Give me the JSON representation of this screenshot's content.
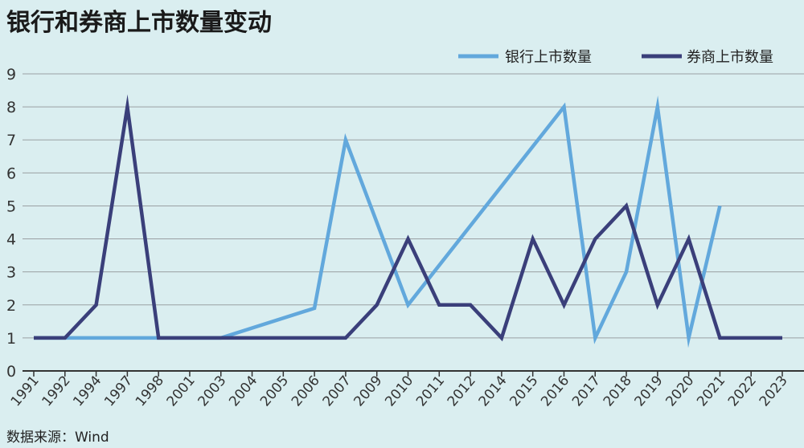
{
  "title": "银行和券商上市数量变动",
  "source": "数据来源：Wind",
  "colors": {
    "background": "#daeef0",
    "bank": "#62a8dc",
    "broker": "#3a3f7a",
    "grid": "#9aa0a3",
    "axis": "#333333"
  },
  "chart_data": {
    "type": "line",
    "categories": [
      "1991",
      "1992",
      "1994",
      "1997",
      "1998",
      "2001",
      "2003",
      "2004",
      "2005",
      "2006",
      "2007",
      "2009",
      "2010",
      "2011",
      "2012",
      "2014",
      "2015",
      "2016",
      "2017",
      "2018",
      "2019",
      "2020",
      "2021",
      "2022",
      "2023"
    ],
    "series": [
      {
        "name": "银行上市数量",
        "color": "#62a8dc",
        "values": [
          1,
          1,
          1,
          1,
          1,
          1,
          1,
          null,
          null,
          1.9,
          7,
          null,
          2,
          null,
          null,
          null,
          null,
          8,
          1,
          3,
          8,
          1,
          5,
          null,
          null
        ]
      },
      {
        "name": "券商上市数量",
        "color": "#3a3f7a",
        "values": [
          1,
          1,
          2,
          8,
          1,
          1,
          1,
          1,
          1,
          1,
          1,
          2,
          4,
          2,
          2,
          1,
          4,
          2,
          4,
          5,
          2,
          4,
          1,
          1,
          1
        ]
      }
    ],
    "ylim": [
      0,
      9
    ],
    "yticks": [
      "0",
      "1",
      "2",
      "3",
      "4",
      "5",
      "6",
      "7",
      "8",
      "9"
    ],
    "grid": true,
    "legend": "top-right",
    "xlabel": "",
    "ylabel": ""
  }
}
